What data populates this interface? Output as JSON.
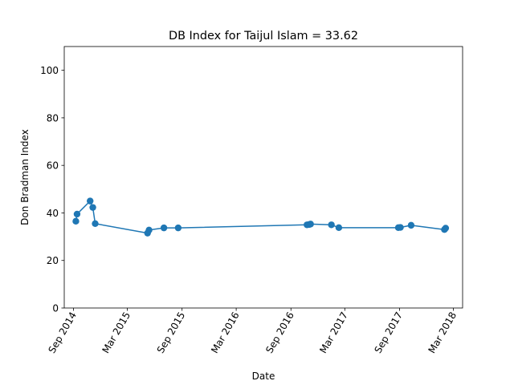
{
  "chart_data": {
    "type": "line",
    "title": "DB Index for Taijul Islam = 33.62",
    "xlabel": "Date",
    "ylabel": "Don Bradman Index",
    "ylim": [
      0,
      110
    ],
    "xlim": [
      "2014-08-01",
      "2018-04-01"
    ],
    "yticks": [
      0,
      20,
      40,
      60,
      80,
      100
    ],
    "xticks": [
      {
        "date": "2014-09-01",
        "label": "Sep 2014"
      },
      {
        "date": "2015-03-01",
        "label": "Mar 2015"
      },
      {
        "date": "2015-09-01",
        "label": "Sep 2015"
      },
      {
        "date": "2016-03-01",
        "label": "Mar 2016"
      },
      {
        "date": "2016-09-01",
        "label": "Sep 2016"
      },
      {
        "date": "2017-03-01",
        "label": "Mar 2017"
      },
      {
        "date": "2017-09-01",
        "label": "Sep 2017"
      },
      {
        "date": "2018-03-01",
        "label": "Mar 2018"
      }
    ],
    "grid": false,
    "series": [
      {
        "color": "#1f77b4",
        "marker": "circle",
        "points": [
          {
            "x": "2014-09-09",
            "y": 36.5
          },
          {
            "x": "2014-09-13",
            "y": 39.5
          },
          {
            "x": "2014-10-27",
            "y": 45.0
          },
          {
            "x": "2014-11-05",
            "y": 42.3
          },
          {
            "x": "2014-11-13",
            "y": 35.5
          },
          {
            "x": "2015-05-08",
            "y": 31.5
          },
          {
            "x": "2015-05-13",
            "y": 32.8
          },
          {
            "x": "2015-07-02",
            "y": 33.7
          },
          {
            "x": "2015-08-19",
            "y": 33.7
          },
          {
            "x": "2016-10-25",
            "y": 35.0
          },
          {
            "x": "2016-11-01",
            "y": 35.1
          },
          {
            "x": "2016-11-06",
            "y": 35.3
          },
          {
            "x": "2017-01-15",
            "y": 35.0
          },
          {
            "x": "2017-02-09",
            "y": 33.8
          },
          {
            "x": "2017-08-28",
            "y": 33.8
          },
          {
            "x": "2017-09-04",
            "y": 33.9
          },
          {
            "x": "2017-10-10",
            "y": 34.8
          },
          {
            "x": "2018-01-30",
            "y": 33.0
          },
          {
            "x": "2018-02-03",
            "y": 33.6
          }
        ]
      }
    ]
  }
}
